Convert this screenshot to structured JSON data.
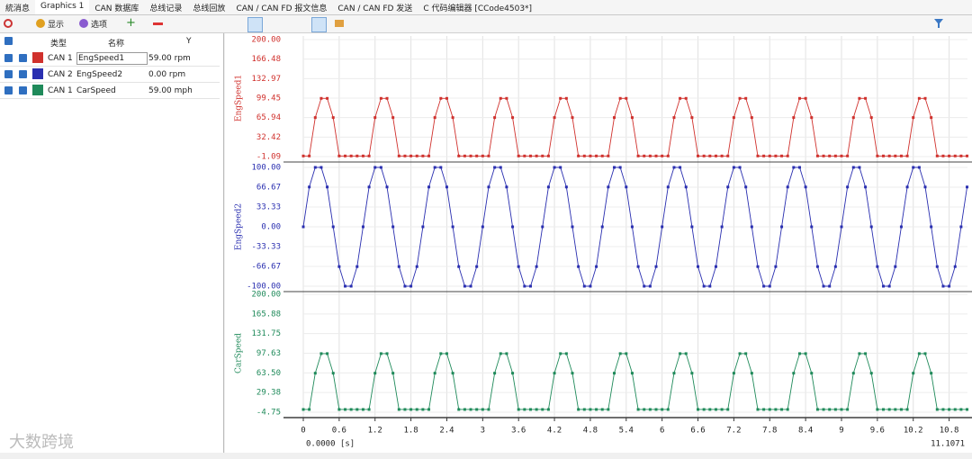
{
  "tabs": [
    "統消息",
    "Graphics 1",
    "CAN 数据库",
    "总线记录",
    "总线回放",
    "CAN / CAN FD 报文信息",
    "CAN / CAN FD 发送",
    "C 代码编辑器 [CCode4503*]"
  ],
  "toolbar": {
    "show": "显示",
    "options": "选项"
  },
  "signal_table": {
    "headers": [
      "类型",
      "名称",
      "Y"
    ],
    "rows": [
      [
        "CAN 1",
        "EngSpeed1",
        "59.00 rpm"
      ],
      [
        "CAN 2",
        "EngSpeed2",
        "0.00 rpm"
      ],
      [
        "CAN 1",
        "CarSpeed",
        "59.00 mph"
      ]
    ]
  },
  "watermark": "大数跨境",
  "chart_data": {
    "type": "line",
    "x": [
      0,
      0.1,
      0.2,
      0.3,
      0.4,
      0.5,
      0.6,
      0.7,
      0.8,
      0.9,
      1,
      1.1,
      1.2,
      1.3,
      1.4,
      1.5,
      1.6,
      1.7,
      1.8,
      1.9,
      2,
      2.1,
      2.2,
      2.3,
      2.4,
      2.5,
      2.6,
      2.7,
      2.8,
      2.9,
      3,
      3.1,
      3.2,
      3.3,
      3.4,
      3.5,
      3.6,
      3.7,
      3.8,
      3.9,
      4,
      4.1,
      4.2,
      4.3,
      4.4,
      4.5,
      4.6,
      4.7,
      4.8,
      4.9,
      5,
      5.1,
      5.2,
      5.3,
      5.4,
      5.5,
      5.6,
      5.7,
      5.8,
      5.9,
      6,
      6.1,
      6.2,
      6.3,
      6.4,
      6.5,
      6.6,
      6.7,
      6.8,
      6.9,
      7,
      7.1,
      7.2,
      7.3,
      7.4,
      7.5,
      7.6,
      7.7,
      7.8,
      7.9,
      8,
      8.1,
      8.2,
      8.3,
      8.4,
      8.5,
      8.6,
      8.7,
      8.8,
      8.9,
      9,
      9.1,
      9.2,
      9.3,
      9.4,
      9.5,
      9.6,
      9.7,
      9.8,
      9.9,
      10,
      10.1,
      10.2,
      10.3,
      10.4,
      10.5,
      10.6,
      10.7,
      10.8,
      10.9,
      11,
      11.1
    ],
    "xlim": [
      0,
      11.1071
    ],
    "xticks": [
      0,
      0.6,
      1.2,
      1.8,
      2.4,
      3,
      3.6,
      4.2,
      4.8,
      5.4,
      6,
      6.6,
      7.2,
      7.8,
      8.4,
      9,
      9.6,
      10.2,
      10.8
    ],
    "x_origin_label": "0.0000 [s]",
    "grid": true,
    "series": [
      {
        "name": "EngSpeed1",
        "color": "#d0312d",
        "ylim": [
          -1.09,
          200
        ],
        "yticks": [
          -1.09,
          32.42,
          65.94,
          99.45,
          132.97,
          166.48,
          {
            "value": 200,
            "label": "200.00"
          }
        ],
        "values": [
          0,
          0,
          66,
          99,
          99,
          66,
          0,
          0,
          0,
          0,
          0,
          0,
          66,
          99,
          99,
          66,
          0,
          0,
          0,
          0,
          0,
          0,
          66,
          99,
          99,
          66,
          0,
          0,
          0,
          0,
          0,
          0,
          66,
          99,
          99,
          66,
          0,
          0,
          0,
          0,
          0,
          0,
          66,
          99,
          99,
          66,
          0,
          0,
          0,
          0,
          0,
          0,
          66,
          99,
          99,
          66,
          0,
          0,
          0,
          0,
          0,
          0,
          66,
          99,
          99,
          66,
          0,
          0,
          0,
          0,
          0,
          0,
          66,
          99,
          99,
          66,
          0,
          0,
          0,
          0,
          0,
          0,
          66,
          99,
          99,
          66,
          0,
          0,
          0,
          0,
          0,
          0,
          66,
          99,
          99,
          66,
          0,
          0,
          0,
          0,
          0,
          0,
          66,
          99,
          99,
          66,
          0,
          0,
          0,
          0,
          0,
          0
        ]
      },
      {
        "name": "EngSpeed2",
        "color": "#2a2fb0",
        "ylim": [
          -100,
          100
        ],
        "yticks": [
          {
            "value": -100,
            "label": "-100.00"
          },
          -66.67,
          -33.33,
          {
            "value": 0,
            "label": "0.00"
          },
          33.33,
          66.67,
          {
            "value": 100,
            "label": "100.00"
          }
        ],
        "values": [
          0,
          67,
          100,
          100,
          67,
          0,
          -67,
          -100,
          -100,
          -67,
          0,
          67,
          100,
          100,
          67,
          0,
          -67,
          -100,
          -100,
          -67,
          0,
          67,
          100,
          100,
          67,
          0,
          -67,
          -100,
          -100,
          -67,
          0,
          67,
          100,
          100,
          67,
          0,
          -67,
          -100,
          -100,
          -67,
          0,
          67,
          100,
          100,
          67,
          0,
          -67,
          -100,
          -100,
          -67,
          0,
          67,
          100,
          100,
          67,
          0,
          -67,
          -100,
          -100,
          -67,
          0,
          67,
          100,
          100,
          67,
          0,
          -67,
          -100,
          -100,
          -67,
          0,
          67,
          100,
          100,
          67,
          0,
          -67,
          -100,
          -100,
          -67,
          0,
          67,
          100,
          100,
          67,
          0,
          -67,
          -100,
          -100,
          -67,
          0,
          67,
          100,
          100,
          67,
          0,
          -67,
          -100,
          -100,
          -67,
          0,
          67,
          100,
          100,
          67,
          0,
          -67,
          -100,
          -100,
          -67,
          0,
          67
        ]
      },
      {
        "name": "CarSpeed",
        "color": "#1f8a5a",
        "ylim": [
          -4.75,
          200
        ],
        "yticks": [
          -4.75,
          29.38,
          {
            "value": 63.5,
            "label": "63.50"
          },
          97.63,
          131.75,
          165.88,
          {
            "value": 200,
            "label": "200.00"
          }
        ],
        "values": [
          0,
          0,
          63,
          97,
          97,
          63,
          0,
          0,
          0,
          0,
          0,
          0,
          63,
          97,
          97,
          63,
          0,
          0,
          0,
          0,
          0,
          0,
          63,
          97,
          97,
          63,
          0,
          0,
          0,
          0,
          0,
          0,
          63,
          97,
          97,
          63,
          0,
          0,
          0,
          0,
          0,
          0,
          63,
          97,
          97,
          63,
          0,
          0,
          0,
          0,
          0,
          0,
          63,
          97,
          97,
          63,
          0,
          0,
          0,
          0,
          0,
          0,
          63,
          97,
          97,
          63,
          0,
          0,
          0,
          0,
          0,
          0,
          63,
          97,
          97,
          63,
          0,
          0,
          0,
          0,
          0,
          0,
          63,
          97,
          97,
          63,
          0,
          0,
          0,
          0,
          0,
          0,
          63,
          97,
          97,
          63,
          0,
          0,
          0,
          0,
          0,
          0,
          63,
          97,
          97,
          63,
          0,
          0,
          0,
          0,
          0,
          0
        ]
      }
    ]
  }
}
